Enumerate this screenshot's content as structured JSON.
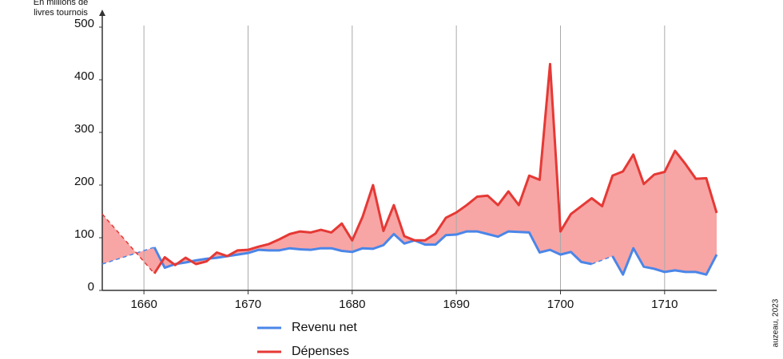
{
  "chart_data": {
    "type": "line",
    "y_axis_label": [
      "En millions de",
      "livres tournois"
    ],
    "credit": "auzeau, 2023",
    "x": [
      1656,
      1657,
      1658,
      1659,
      1660,
      1661,
      1662,
      1663,
      1664,
      1665,
      1666,
      1667,
      1668,
      1669,
      1670,
      1671,
      1672,
      1673,
      1674,
      1675,
      1676,
      1677,
      1678,
      1679,
      1680,
      1681,
      1682,
      1683,
      1684,
      1685,
      1686,
      1687,
      1688,
      1689,
      1690,
      1691,
      1692,
      1693,
      1694,
      1695,
      1696,
      1697,
      1698,
      1699,
      1700,
      1701,
      1702,
      1703,
      1704,
      1705,
      1706,
      1707,
      1708,
      1709,
      1710,
      1711,
      1712,
      1713,
      1714,
      1715
    ],
    "series": [
      {
        "name": "Revenu net",
        "color": "#4a86e8",
        "values": [
          50,
          null,
          null,
          null,
          null,
          82,
          43,
          50,
          53,
          57,
          60,
          62,
          65,
          68,
          71,
          77,
          76,
          76,
          80,
          78,
          77,
          80,
          80,
          75,
          73,
          80,
          79,
          86,
          107,
          89,
          95,
          87,
          87,
          105,
          106,
          112,
          112,
          107,
          102,
          112,
          111,
          110,
          72,
          77,
          68,
          73,
          54,
          50,
          null,
          65,
          30,
          80,
          45,
          41,
          35,
          38,
          35,
          35,
          30,
          68
        ]
      },
      {
        "name": "Dépenses",
        "color": "#e53935",
        "values": [
          145,
          null,
          null,
          null,
          null,
          32,
          63,
          48,
          62,
          50,
          55,
          72,
          65,
          76,
          77,
          83,
          88,
          97,
          107,
          112,
          110,
          115,
          110,
          127,
          95,
          140,
          200,
          113,
          162,
          103,
          95,
          95,
          108,
          138,
          148,
          162,
          178,
          180,
          162,
          188,
          162,
          218,
          210,
          430,
          112,
          145,
          160,
          175,
          160,
          218,
          226,
          258,
          202,
          220,
          225,
          265,
          240,
          212,
          213,
          147
        ]
      }
    ],
    "fill_color": "#f8a5a5",
    "xlim": [
      1656,
      1715
    ],
    "xticks": [
      1660,
      1670,
      1680,
      1690,
      1700,
      1710
    ],
    "ylim": [
      0,
      500
    ],
    "yticks": [
      0,
      100,
      200,
      300,
      400,
      500
    ],
    "grid": "x"
  }
}
